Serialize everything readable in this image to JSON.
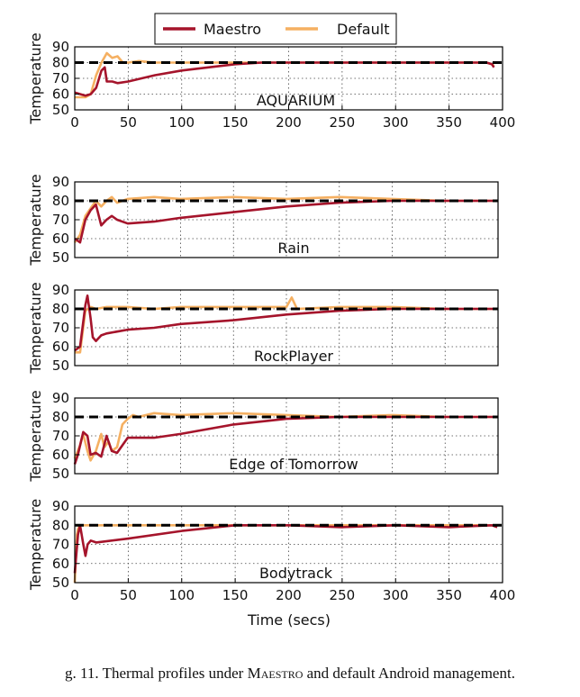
{
  "legend": {
    "position": "top-center"
  },
  "colors": {
    "maestro": "#a5142b",
    "default": "#f5b062",
    "target": "#000000"
  },
  "chart_data": [
    {
      "type": "line",
      "title": "AQUARIUM",
      "xlabel": "",
      "ylabel": "Temperature",
      "xlim": [
        0,
        400
      ],
      "ylim": [
        50,
        90
      ],
      "xticks": [
        "0",
        "50",
        "100",
        "150",
        "200",
        "250",
        "300",
        "350",
        "400"
      ],
      "yticks": [
        "50",
        "60",
        "70",
        "80",
        "90"
      ],
      "grid": true,
      "target_line": 80,
      "series": [
        {
          "name": "Maestro",
          "x": [
            0,
            10,
            15,
            20,
            25,
            28,
            30,
            35,
            40,
            50,
            75,
            100,
            125,
            150,
            175,
            200,
            250,
            300,
            350,
            385,
            390,
            392
          ],
          "y": [
            61,
            59,
            60,
            64,
            75,
            77,
            68,
            68,
            67,
            68,
            72,
            75,
            77,
            79,
            80,
            80,
            80,
            80,
            80,
            80,
            79,
            77
          ]
        },
        {
          "name": "Default",
          "x": [
            0,
            10,
            15,
            20,
            25,
            30,
            35,
            40,
            45,
            50,
            60,
            75,
            100,
            150,
            200,
            250,
            300,
            350,
            385,
            390,
            392
          ],
          "y": [
            58,
            58,
            60,
            72,
            80,
            86,
            83,
            84,
            80,
            80,
            81,
            80,
            80,
            80,
            80,
            80,
            80,
            80,
            80,
            79,
            78
          ]
        }
      ]
    },
    {
      "type": "line",
      "title": "Rain",
      "xlabel": "",
      "ylabel": "Temperature",
      "xlim": [
        0,
        400
      ],
      "ylim": [
        50,
        90
      ],
      "yticks": [
        "50",
        "60",
        "70",
        "80",
        "90"
      ],
      "grid": true,
      "target_line": 80,
      "series": [
        {
          "name": "Maestro",
          "x": [
            0,
            5,
            10,
            15,
            20,
            25,
            30,
            35,
            40,
            50,
            75,
            100,
            150,
            200,
            250,
            300,
            350,
            400
          ],
          "y": [
            60,
            58,
            70,
            75,
            78,
            67,
            70,
            72,
            70,
            68,
            69,
            71,
            74,
            77,
            79,
            80,
            80,
            80
          ]
        },
        {
          "name": "Default",
          "x": [
            0,
            5,
            10,
            15,
            20,
            25,
            30,
            35,
            40,
            50,
            75,
            100,
            150,
            200,
            250,
            300,
            350,
            400
          ],
          "y": [
            58,
            62,
            72,
            76,
            80,
            77,
            80,
            82,
            79,
            81,
            82,
            81,
            82,
            81,
            82,
            81,
            80,
            80
          ]
        }
      ]
    },
    {
      "type": "line",
      "title": "RockPlayer",
      "xlabel": "",
      "ylabel": "Temperature",
      "xlim": [
        0,
        400
      ],
      "ylim": [
        50,
        90
      ],
      "yticks": [
        "50",
        "60",
        "70",
        "80",
        "90"
      ],
      "grid": true,
      "target_line": 80,
      "series": [
        {
          "name": "Maestro",
          "x": [
            0,
            5,
            10,
            12,
            15,
            17,
            20,
            25,
            30,
            50,
            75,
            100,
            150,
            200,
            250,
            300,
            350,
            400
          ],
          "y": [
            58,
            60,
            82,
            87,
            75,
            65,
            63,
            66,
            67,
            69,
            70,
            72,
            74,
            77,
            79,
            80,
            80,
            80
          ]
        },
        {
          "name": "Default",
          "x": [
            0,
            5,
            8,
            10,
            15,
            20,
            30,
            50,
            75,
            100,
            150,
            200,
            205,
            210,
            250,
            300,
            350,
            400
          ],
          "y": [
            57,
            57,
            70,
            79,
            81,
            80,
            81,
            81,
            80,
            81,
            81,
            81,
            86,
            80,
            81,
            81,
            80,
            80
          ]
        }
      ]
    },
    {
      "type": "line",
      "title": "Edge of Tomorrow",
      "xlabel": "",
      "ylabel": "Temperature",
      "xlim": [
        0,
        400
      ],
      "ylim": [
        50,
        90
      ],
      "yticks": [
        "50",
        "60",
        "70",
        "80",
        "90"
      ],
      "grid": true,
      "target_line": 80,
      "series": [
        {
          "name": "Maestro",
          "x": [
            0,
            3,
            8,
            12,
            15,
            20,
            25,
            30,
            35,
            40,
            45,
            50,
            75,
            100,
            150,
            200,
            250,
            300,
            350,
            400
          ],
          "y": [
            55,
            60,
            72,
            70,
            60,
            61,
            59,
            70,
            62,
            61,
            65,
            69,
            69,
            71,
            76,
            79,
            80,
            80,
            80,
            80
          ]
        },
        {
          "name": "Default",
          "x": [
            0,
            5,
            8,
            12,
            15,
            20,
            25,
            28,
            32,
            35,
            40,
            45,
            50,
            55,
            60,
            75,
            100,
            150,
            200,
            250,
            300,
            350,
            400
          ],
          "y": [
            58,
            65,
            71,
            62,
            57,
            62,
            71,
            64,
            67,
            62,
            64,
            76,
            79,
            81,
            80,
            82,
            81,
            82,
            81,
            80,
            81,
            80,
            80
          ]
        }
      ]
    },
    {
      "type": "line",
      "title": "Bodytrack",
      "xlabel": "Time (secs)",
      "ylabel": "Temperature",
      "xlim": [
        0,
        400
      ],
      "ylim": [
        50,
        90
      ],
      "xticks": [
        "0",
        "50",
        "100",
        "150",
        "200",
        "250",
        "300",
        "350",
        "400"
      ],
      "yticks": [
        "50",
        "60",
        "70",
        "80",
        "90"
      ],
      "grid": true,
      "target_line": 80,
      "series": [
        {
          "name": "Maestro",
          "x": [
            0,
            3,
            5,
            8,
            10,
            12,
            15,
            20,
            50,
            100,
            150,
            200,
            250,
            300,
            350,
            390,
            395
          ],
          "y": [
            55,
            75,
            80,
            70,
            64,
            70,
            72,
            71,
            73,
            77,
            80,
            80,
            79,
            80,
            79,
            80,
            79
          ]
        },
        {
          "name": "Default",
          "x": [
            0,
            2,
            3,
            5,
            10,
            20,
            50,
            100,
            150,
            200,
            250,
            300,
            350,
            390,
            395
          ],
          "y": [
            50,
            75,
            78,
            80,
            80,
            80,
            80,
            80,
            80,
            80,
            80,
            80,
            80,
            80,
            80
          ]
        }
      ]
    }
  ],
  "caption": {
    "prefix": "g. 11.   Thermal profiles under ",
    "name": "Maestro",
    "suffix": " and default Android management."
  }
}
